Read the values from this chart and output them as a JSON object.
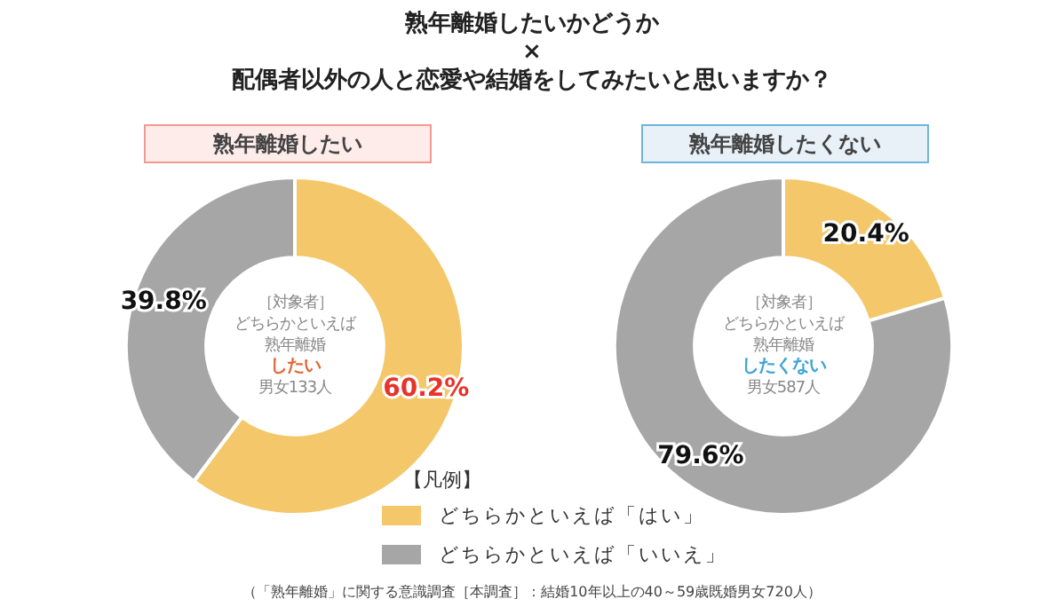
{
  "chart_data": [
    {
      "type": "donut",
      "title": "熟年離婚したいかどうか\n×\n配偶者以外の人と恋愛や結婚をしてみたいと思いますか？",
      "subtitle": "熟年離婚したい",
      "categories": [
        "どちらかといえば「はい」",
        "どちらかといえば「いいえ」"
      ],
      "values": [
        60.2,
        39.8
      ],
      "colors": [
        "#f4c76a",
        "#a6a6a6"
      ],
      "value_labels": [
        "60.2%",
        "39.8%"
      ],
      "legend": "bottom",
      "legend_title": "【凡例】",
      "annotations": [
        "［対象者］",
        "どちらかといえば",
        "熟年離婚",
        "したい",
        "男女133人",
        "（「熟年離婚」に関する意識調査［本調査］：結婚10年以上の40～59歳既婚男女720人）"
      ]
    },
    {
      "type": "donut",
      "subtitle": "熟年離婚したくない",
      "categories": [
        null,
        null
      ],
      "values": [
        20.4,
        79.6
      ],
      "colors": [
        "#f4c76a",
        "#a6a6a6"
      ],
      "value_labels": [
        "20.4%",
        "79.6%"
      ],
      "annotations": [
        "［対象者］",
        "どちらかといえば",
        "熟年離婚",
        "したくない",
        "男女587人"
      ]
    }
  ]
}
